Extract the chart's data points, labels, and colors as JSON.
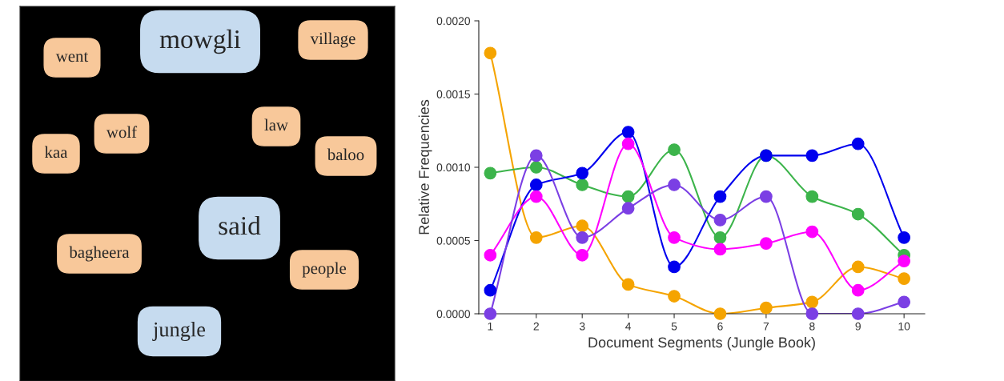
{
  "chart_data": [
    {
      "type": "other",
      "categories": [
        "went",
        "mowgli",
        "village",
        "law",
        "wolf",
        "kaa",
        "baloo",
        "said",
        "bagheera",
        "people",
        "jungle"
      ],
      "colors": [
        "#f8c89a",
        "#c6dbef",
        "#f8c89a",
        "#f8c89a",
        "#f8c89a",
        "#f8c89a",
        "#f8c89a",
        "#c6dbef",
        "#f8c89a",
        "#f8c89a",
        "#c6dbef"
      ]
    },
    {
      "type": "line",
      "xlabel": "Document Segments (Jungle Book)",
      "ylabel": "Relative Frequencies",
      "x": [
        1,
        2,
        3,
        4,
        5,
        6,
        7,
        8,
        9,
        10
      ],
      "series": [
        {
          "color": "#f5a400",
          "values": [
            0.00178,
            0.00052,
            0.0006,
            0.0002,
            0.00012,
            0.0,
            4e-05,
            8e-05,
            0.00032,
            0.00024
          ]
        },
        {
          "color": "#3cb44b",
          "values": [
            0.00096,
            0.001,
            0.00088,
            0.0008,
            0.00112,
            0.00052,
            0.00108,
            0.0008,
            0.00068,
            0.0004
          ]
        },
        {
          "color": "#0000ee",
          "values": [
            0.00016,
            0.00088,
            0.00096,
            0.00124,
            0.00032,
            0.0008,
            0.00108,
            0.00108,
            0.00116,
            0.00052
          ]
        },
        {
          "color": "#ff00ff",
          "values": [
            0.0004,
            0.0008,
            0.0004,
            0.00116,
            0.00052,
            0.00044,
            0.00048,
            0.00056,
            0.00016,
            0.00036
          ]
        },
        {
          "color": "#7b3fe4",
          "values": [
            0.0,
            0.00108,
            0.00052,
            0.00072,
            0.00088,
            0.00064,
            0.0008,
            0.0,
            0.0,
            8e-05
          ]
        }
      ],
      "xlim": [
        0.75,
        10.45
      ],
      "xticks": [
        1,
        2,
        3,
        4,
        5,
        6,
        7,
        8,
        9,
        10
      ],
      "ylim": [
        0,
        0.002
      ],
      "yticks": [
        {
          "value": 0,
          "label": "0.0000"
        },
        {
          "value": 0.0005,
          "label": "0.0005"
        },
        {
          "value": 0.001,
          "label": "0.0010"
        },
        {
          "value": 0.0015,
          "label": "0.0015"
        },
        {
          "value": 0.002,
          "label": "0.0020"
        }
      ],
      "marker": "circle",
      "line_style": "solid",
      "grid": false
    }
  ]
}
